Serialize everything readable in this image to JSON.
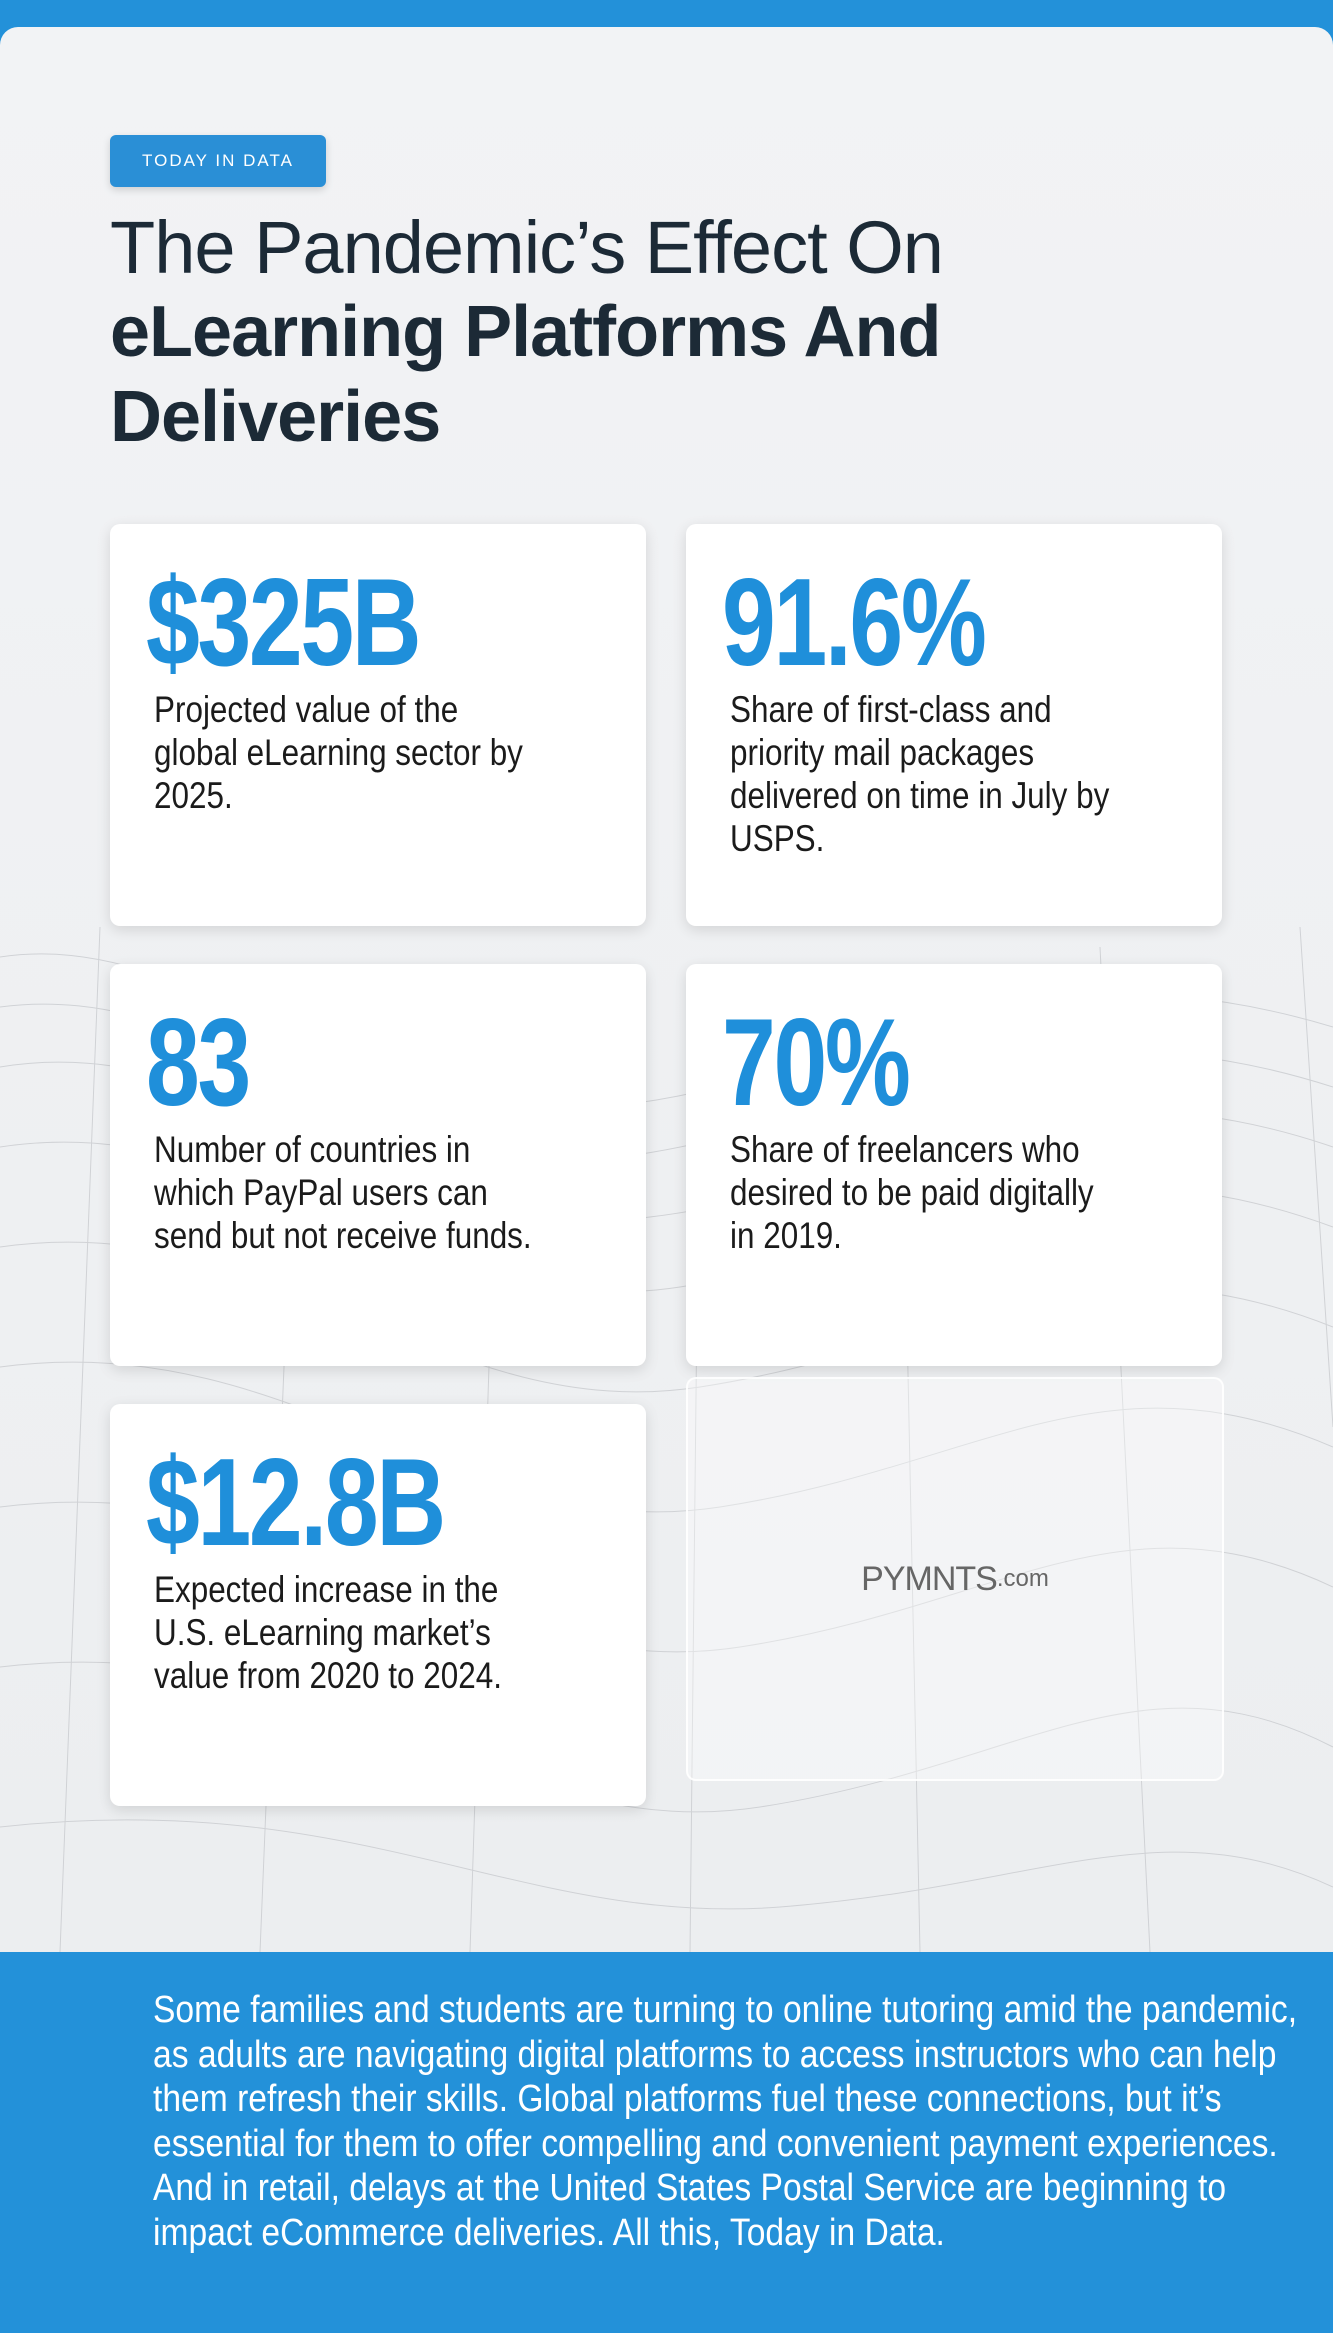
{
  "header": {
    "badge": "TODAY IN DATA",
    "title_light": "The Pandemic’s Effect On",
    "title_bold": "eLearning Platforms And Deliveries"
  },
  "stats": [
    {
      "value": "$325B",
      "description": "Projected value of the global eLearning sector by 2025."
    },
    {
      "value": "91.6%",
      "description": "Share of first-class and priority mail packages delivered on time in July by USPS."
    },
    {
      "value": "83",
      "description": "Number of countries in which PayPal users can send but not receive funds."
    },
    {
      "value": "70%",
      "description": "Share of freelancers who desired to be paid digitally in 2019."
    },
    {
      "value": "$12.8B",
      "description": "Expected increase in the U.S. eLearning market’s value from 2020 to 2024."
    }
  ],
  "logo": {
    "name": "PYMNTS",
    "suffix": ".com"
  },
  "footer": {
    "text": "Some families and students are turning to online tutoring amid the pandemic, as adults are navigating digital platforms to access instructors who can help them refresh their skills. Global platforms fuel these connections, but it’s essential for them to offer compelling and convenient payment experiences. And in retail, delays at the United States Postal Service are beginning to impact eCommerce deliveries. All this, Today in Data."
  }
}
